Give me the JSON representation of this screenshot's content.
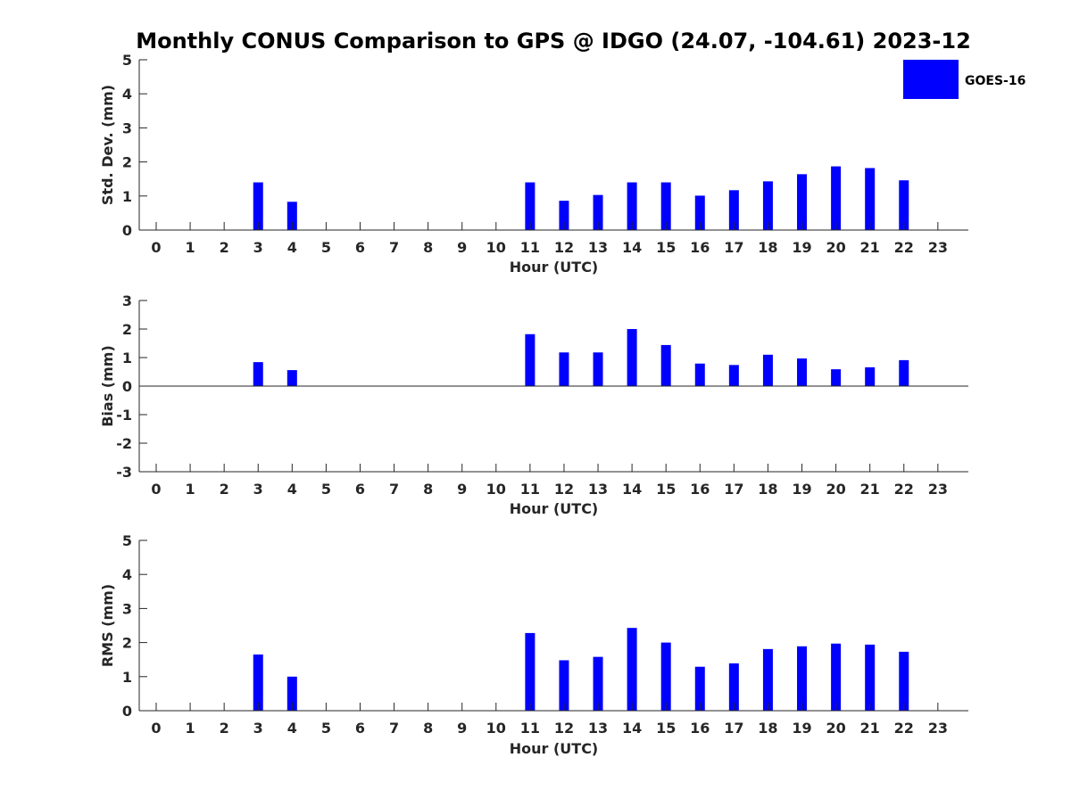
{
  "chart_data": {
    "title": "Monthly CONUS Comparison to GPS @ IDGO (24.07, -104.61) 2023-12",
    "colors": {
      "bar": "#0000ff",
      "axis": "#262626"
    },
    "legend": {
      "entries": [
        "GOES-16"
      ],
      "placement": "top-right"
    },
    "panels": [
      {
        "type": "bar",
        "xlabel": "Hour (UTC)",
        "ylabel": "Std. Dev. (mm)",
        "ylim": [
          0,
          5
        ],
        "yticks": [
          0,
          1,
          2,
          3,
          4,
          5
        ],
        "categories": [
          0,
          1,
          2,
          3,
          4,
          5,
          6,
          7,
          8,
          9,
          10,
          11,
          12,
          13,
          14,
          15,
          16,
          17,
          18,
          19,
          20,
          21,
          22,
          23
        ],
        "series": [
          {
            "name": "GOES-16",
            "values": [
              null,
              null,
              null,
              1.4,
              0.83,
              null,
              null,
              null,
              null,
              null,
              null,
              1.4,
              0.86,
              1.03,
              1.4,
              1.4,
              1.01,
              1.17,
              1.43,
              1.64,
              1.87,
              1.82,
              1.46,
              null
            ]
          }
        ]
      },
      {
        "type": "bar",
        "xlabel": "Hour (UTC)",
        "ylabel": "Bias (mm)",
        "ylim": [
          -3,
          3
        ],
        "yticks": [
          -3,
          -2,
          -1,
          0,
          1,
          2,
          3
        ],
        "categories": [
          0,
          1,
          2,
          3,
          4,
          5,
          6,
          7,
          8,
          9,
          10,
          11,
          12,
          13,
          14,
          15,
          16,
          17,
          18,
          19,
          20,
          21,
          22,
          23
        ],
        "series": [
          {
            "name": "GOES-16",
            "values": [
              null,
              null,
              null,
              0.84,
              0.56,
              null,
              null,
              null,
              null,
              null,
              null,
              1.82,
              1.18,
              1.18,
              2.0,
              1.44,
              0.79,
              0.74,
              1.1,
              0.97,
              0.59,
              0.66,
              0.91,
              null
            ]
          }
        ]
      },
      {
        "type": "bar",
        "xlabel": "Hour (UTC)",
        "ylabel": "RMS (mm)",
        "ylim": [
          0,
          5
        ],
        "yticks": [
          0,
          1,
          2,
          3,
          4,
          5
        ],
        "categories": [
          0,
          1,
          2,
          3,
          4,
          5,
          6,
          7,
          8,
          9,
          10,
          11,
          12,
          13,
          14,
          15,
          16,
          17,
          18,
          19,
          20,
          21,
          22,
          23
        ],
        "series": [
          {
            "name": "GOES-16",
            "values": [
              null,
              null,
              null,
              1.65,
              1.0,
              null,
              null,
              null,
              null,
              null,
              null,
              2.28,
              1.48,
              1.58,
              2.43,
              2.0,
              1.29,
              1.39,
              1.81,
              1.89,
              1.97,
              1.94,
              1.73,
              null
            ]
          }
        ]
      }
    ]
  }
}
